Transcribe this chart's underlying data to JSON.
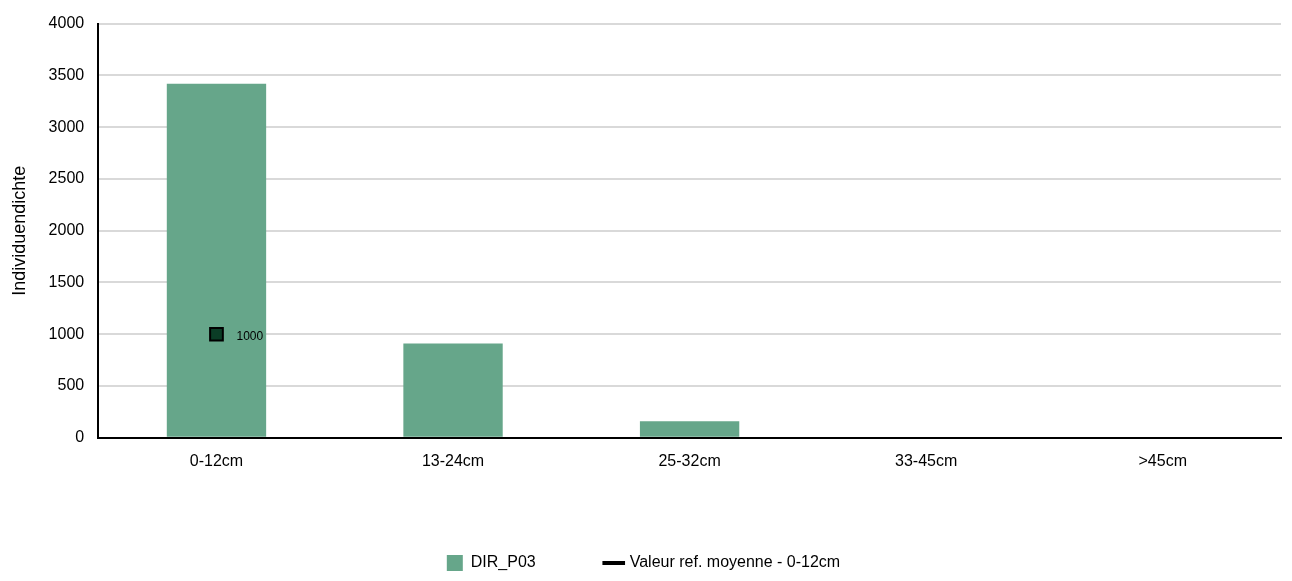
{
  "chart_data": {
    "type": "bar",
    "ylabel": "Individuendichte",
    "categories": [
      "0-12cm",
      "13-24cm",
      "25-32cm",
      "33-45cm",
      ">45cm"
    ],
    "series": [
      {
        "name": "DIR_P03",
        "color": "#66a68a",
        "values": [
          3420,
          910,
          160,
          0,
          0
        ]
      },
      {
        "name": "Valeur ref. moyenne - 0-12cm",
        "type": "line",
        "color": "#000000",
        "marker": "square",
        "values": [
          1000,
          null,
          null,
          null,
          null
        ],
        "value_labels": [
          "1000",
          null,
          null,
          null,
          null
        ]
      }
    ],
    "ylim": [
      0,
      4000
    ],
    "yticks": [
      0,
      500,
      1000,
      1500,
      2000,
      2500,
      3000,
      3500,
      4000
    ],
    "grid": "y",
    "legend": "bottom"
  }
}
